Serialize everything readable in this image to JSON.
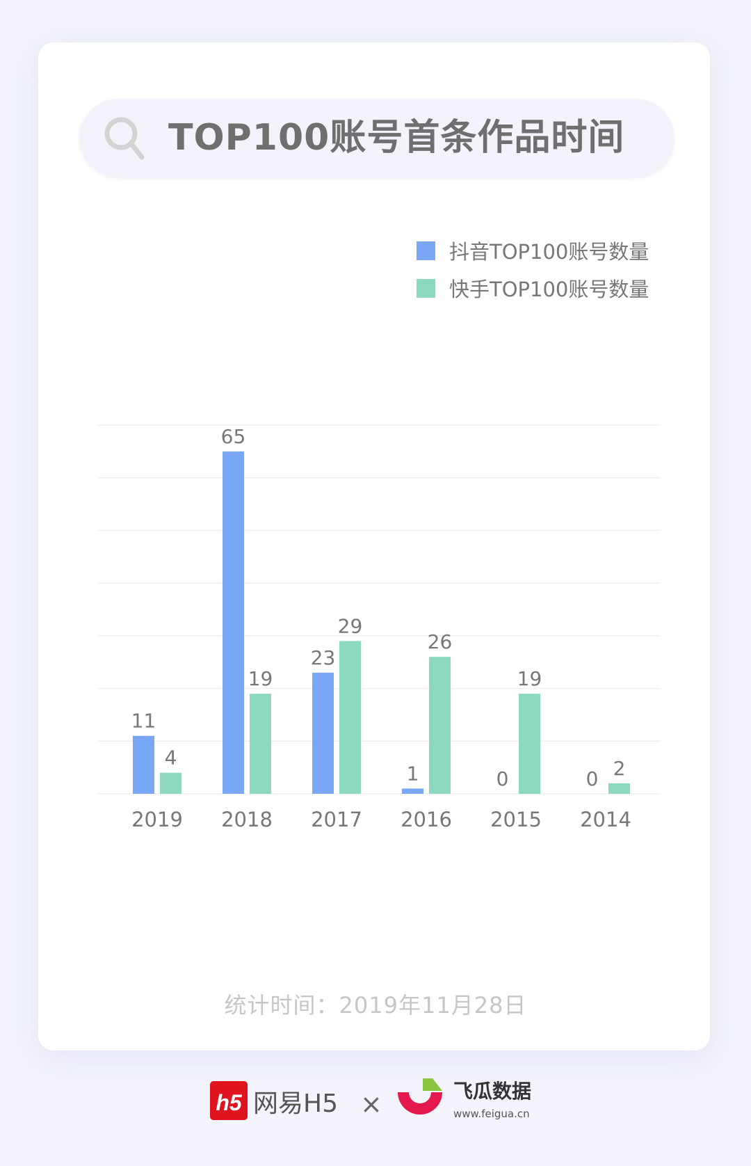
{
  "header": {
    "title": "TOP100账号首条作品时间",
    "icon": "search-icon"
  },
  "chart_data": {
    "type": "bar",
    "categories": [
      "2019",
      "2018",
      "2017",
      "2016",
      "2015",
      "2014"
    ],
    "series": [
      {
        "name": "抖音TOP100账号数量",
        "color": "#7aa7f5",
        "values": [
          11,
          65,
          23,
          1,
          0,
          0
        ]
      },
      {
        "name": "快手TOP100账号数量",
        "color": "#8cd9c0",
        "values": [
          4,
          19,
          29,
          26,
          19,
          2
        ]
      }
    ],
    "ylim": [
      0,
      70
    ],
    "grid": true,
    "legend": "top-right",
    "data_labels": true
  },
  "footer": {
    "note": "统计时间：2019年11月28日"
  },
  "logos": {
    "left": "网易H5",
    "separator": "×",
    "right": "飞瓜数据",
    "right_url": "www.feigua.cn"
  }
}
